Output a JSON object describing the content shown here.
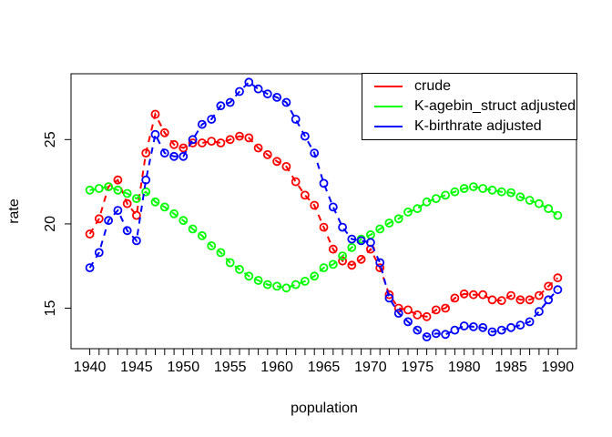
{
  "chart_data": {
    "type": "line",
    "title": "",
    "xlabel": "population",
    "ylabel": "rate",
    "grid": false,
    "line_style": "dashed",
    "marker": "open-circle",
    "legend_position": "top-right",
    "xlim": [
      1938,
      1992
    ],
    "ylim": [
      12.6,
      28.9
    ],
    "x_ticks_labeled": [
      1940,
      1945,
      1950,
      1955,
      1960,
      1965,
      1970,
      1975,
      1980,
      1985,
      1990
    ],
    "x_minor_tick_step": 1,
    "y_ticks": [
      15,
      20,
      25
    ],
    "x": [
      1940,
      1941,
      1942,
      1943,
      1944,
      1945,
      1946,
      1947,
      1948,
      1949,
      1950,
      1951,
      1952,
      1953,
      1954,
      1955,
      1956,
      1957,
      1958,
      1959,
      1960,
      1961,
      1962,
      1963,
      1964,
      1965,
      1966,
      1967,
      1968,
      1969,
      1970,
      1971,
      1972,
      1973,
      1974,
      1975,
      1976,
      1977,
      1978,
      1979,
      1980,
      1981,
      1982,
      1983,
      1984,
      1985,
      1986,
      1987,
      1988,
      1989,
      1990
    ],
    "series": [
      {
        "name": "crude",
        "color": "#FF0000",
        "values": [
          19.4,
          20.3,
          22.2,
          22.6,
          21.2,
          20.5,
          24.2,
          26.5,
          25.4,
          24.7,
          24.5,
          24.8,
          24.8,
          24.9,
          24.8,
          25.0,
          25.2,
          25.1,
          24.5,
          24.1,
          23.7,
          23.4,
          22.5,
          21.7,
          21.1,
          19.8,
          18.5,
          17.8,
          17.55,
          17.9,
          18.5,
          17.4,
          15.8,
          15.0,
          14.9,
          14.6,
          14.5,
          14.9,
          15.0,
          15.6,
          15.85,
          15.8,
          15.8,
          15.5,
          15.45,
          15.75,
          15.5,
          15.5,
          15.75,
          16.3,
          16.8
        ]
      },
      {
        "name": "K-agebin_struct adjusted",
        "color": "#00FF00",
        "values": [
          22.0,
          22.1,
          22.2,
          22.0,
          21.8,
          21.5,
          21.9,
          21.3,
          21.0,
          20.6,
          20.2,
          19.7,
          19.3,
          18.7,
          18.3,
          17.7,
          17.3,
          16.9,
          16.65,
          16.4,
          16.3,
          16.2,
          16.4,
          16.6,
          16.9,
          17.4,
          17.6,
          18.1,
          18.6,
          19.1,
          19.35,
          19.7,
          20.05,
          20.3,
          20.7,
          20.9,
          21.3,
          21.5,
          21.7,
          21.9,
          22.1,
          22.2,
          22.1,
          22.0,
          21.9,
          21.85,
          21.6,
          21.4,
          21.2,
          20.9,
          20.5
        ]
      },
      {
        "name": "K-birthrate adjusted",
        "color": "#0000FF",
        "values": [
          17.4,
          18.3,
          20.2,
          20.8,
          19.6,
          19.0,
          22.6,
          25.3,
          24.2,
          24.0,
          24.0,
          25.0,
          25.9,
          26.2,
          27.0,
          27.2,
          27.85,
          28.4,
          28.0,
          27.7,
          27.5,
          27.2,
          26.2,
          25.2,
          24.2,
          22.4,
          21.0,
          19.8,
          19.1,
          19.0,
          18.9,
          17.7,
          15.6,
          14.7,
          14.2,
          13.7,
          13.3,
          13.5,
          13.45,
          13.7,
          13.95,
          13.9,
          13.85,
          13.6,
          13.7,
          13.85,
          14.0,
          14.2,
          14.8,
          15.5,
          16.1
        ]
      }
    ]
  }
}
